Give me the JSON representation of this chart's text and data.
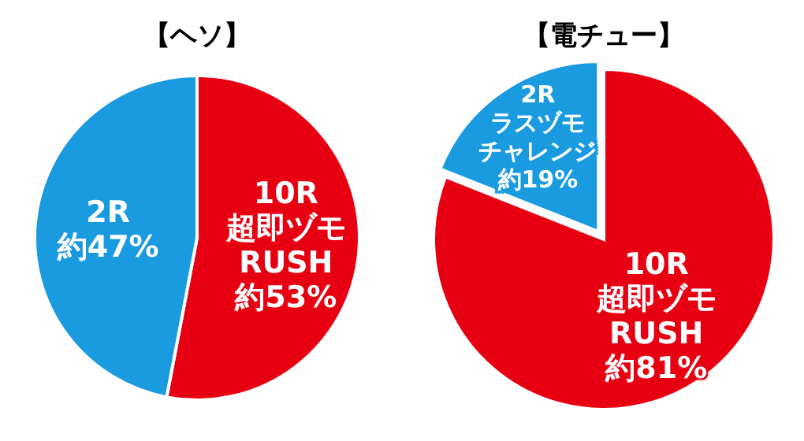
{
  "chart_data": [
    {
      "type": "pie",
      "title": "【ヘソ】",
      "categories": [
        "10R\n超即ヅモ\nRUSH",
        "2R"
      ],
      "values": [
        53,
        47
      ],
      "value_labels": [
        "約53%",
        "約47%"
      ],
      "colors": [
        "#e60012",
        "#1a9be0"
      ]
    },
    {
      "type": "pie",
      "title": "【電チュー】",
      "categories": [
        "10R\n超即ヅモ\nRUSH",
        "2R\nラスヅモチャレンジ"
      ],
      "values": [
        81,
        19
      ],
      "value_labels": [
        "約81%",
        "約19%"
      ],
      "colors": [
        "#e60012",
        "#1a9be0"
      ]
    }
  ]
}
